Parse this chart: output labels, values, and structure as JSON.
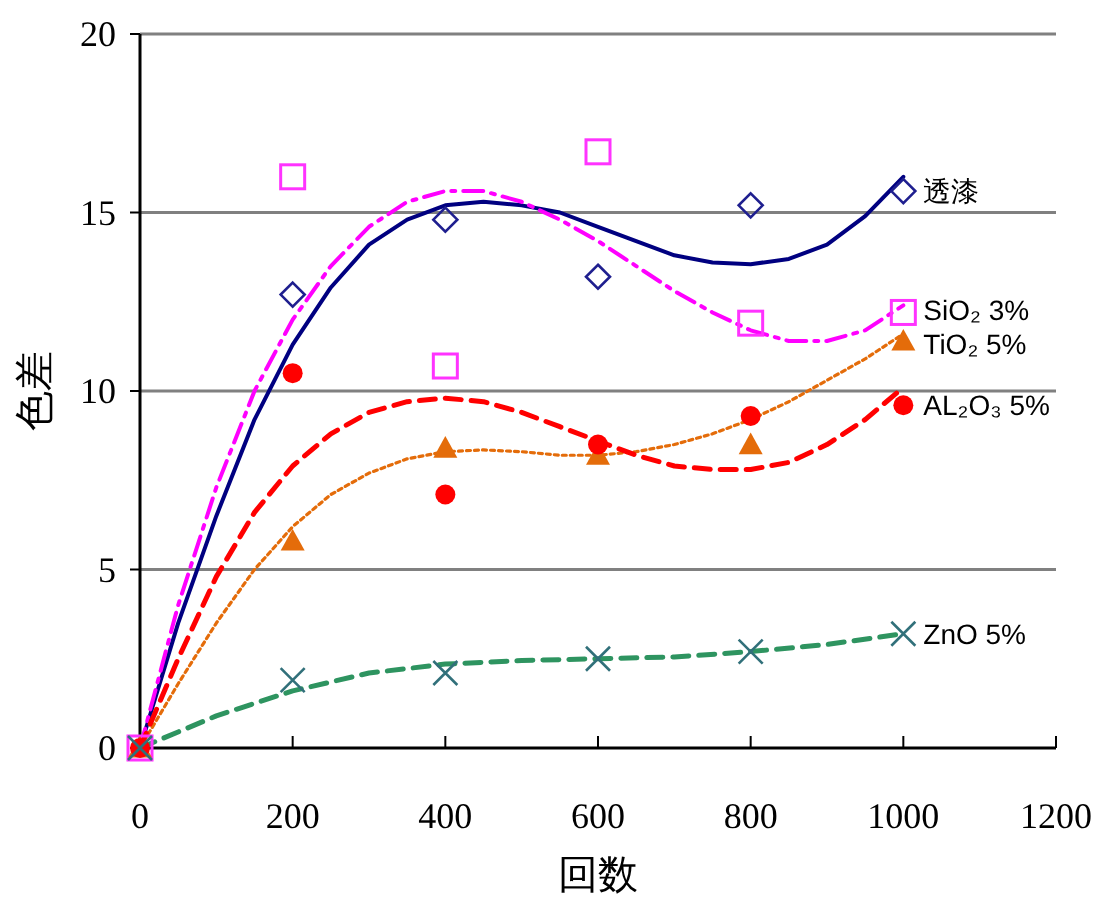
{
  "chart_data": {
    "type": "scatter",
    "xlabel": "回数",
    "ylabel": "色差",
    "xlim": [
      0,
      1200
    ],
    "xticks": [
      0,
      200,
      400,
      600,
      800,
      1000,
      1200
    ],
    "ylim": [
      0,
      20
    ],
    "yticks": [
      0,
      5,
      10,
      15,
      20
    ],
    "grid": "y",
    "series": [
      {
        "name": "透漆",
        "marker": "diamond",
        "color": "#1f1f8f",
        "x": [
          200,
          400,
          600,
          800,
          1000
        ],
        "values": [
          12.7,
          14.8,
          13.2,
          15.2,
          15.6
        ]
      },
      {
        "name": "SiO₂ 3%",
        "marker": "square",
        "color": "#ff33ff",
        "x": [
          0,
          200,
          400,
          600,
          800,
          1000
        ],
        "values": [
          0,
          16,
          10.7,
          16.7,
          11.9,
          12.2
        ]
      },
      {
        "name": "TiO₂ 5%",
        "marker": "triangle",
        "color": "#e46c0a",
        "x": [
          0,
          200,
          400,
          600,
          800,
          1000
        ],
        "values": [
          0,
          5.8,
          8.4,
          8.2,
          8.5,
          11.4
        ]
      },
      {
        "name": "AL₂O₃ 5%",
        "marker": "circle",
        "color": "#ff0000",
        "x": [
          0,
          200,
          400,
          600,
          800,
          1000
        ],
        "values": [
          0,
          10.5,
          7.1,
          8.5,
          9.3,
          9.6
        ]
      },
      {
        "name": "ZnO 5%",
        "marker": "cross",
        "color": "#31707a",
        "x": [
          0,
          200,
          400,
          600,
          800,
          1000
        ],
        "values": [
          0,
          1.9,
          2.1,
          2.5,
          2.7,
          3.2
        ]
      },
      {
        "type": "line",
        "line_style": "solid",
        "color": "#000080",
        "x": [
          0,
          50,
          100,
          150,
          200,
          250,
          300,
          350,
          400,
          450,
          500,
          550,
          600,
          650,
          700,
          750,
          800,
          850,
          900,
          950,
          1000
        ],
        "values": [
          0,
          3.5,
          6.5,
          9.2,
          11.3,
          12.9,
          14.1,
          14.8,
          15.2,
          15.3,
          15.2,
          15.0,
          14.6,
          14.2,
          13.8,
          13.6,
          13.55,
          13.7,
          14.1,
          14.9,
          16.0
        ]
      },
      {
        "type": "line",
        "line_style": "dashdot",
        "color": "#ff00ff",
        "x": [
          0,
          50,
          100,
          150,
          200,
          250,
          300,
          350,
          400,
          450,
          500,
          550,
          600,
          650,
          700,
          750,
          800,
          850,
          900,
          950,
          1000
        ],
        "values": [
          0,
          4,
          7.3,
          10,
          12,
          13.5,
          14.6,
          15.3,
          15.6,
          15.6,
          15.3,
          14.8,
          14.2,
          13.5,
          12.8,
          12.2,
          11.7,
          11.4,
          11.4,
          11.7,
          12.4
        ]
      },
      {
        "type": "line",
        "line_style": "dotted",
        "color": "#e46c0a",
        "x": [
          0,
          50,
          100,
          150,
          200,
          250,
          300,
          350,
          400,
          450,
          500,
          550,
          600,
          650,
          700,
          750,
          800,
          850,
          900,
          950,
          1000
        ],
        "values": [
          0,
          1.8,
          3.5,
          5.0,
          6.2,
          7.1,
          7.7,
          8.1,
          8.3,
          8.35,
          8.3,
          8.2,
          8.2,
          8.3,
          8.5,
          8.8,
          9.2,
          9.7,
          10.3,
          10.9,
          11.6
        ]
      },
      {
        "type": "line",
        "line_style": "dashed",
        "color": "#ff0000",
        "x": [
          0,
          50,
          100,
          150,
          200,
          250,
          300,
          350,
          400,
          450,
          500,
          550,
          600,
          650,
          700,
          750,
          800,
          850,
          900,
          950,
          1000
        ],
        "values": [
          0,
          2.5,
          4.8,
          6.6,
          7.9,
          8.8,
          9.4,
          9.7,
          9.8,
          9.7,
          9.4,
          9.0,
          8.6,
          8.2,
          7.9,
          7.8,
          7.8,
          8.0,
          8.5,
          9.2,
          10.1
        ]
      },
      {
        "type": "line",
        "line_style": "dashed",
        "color": "#2e9460",
        "x": [
          0,
          100,
          200,
          300,
          400,
          500,
          600,
          700,
          800,
          900,
          1000
        ],
        "values": [
          0,
          0.9,
          1.6,
          2.1,
          2.35,
          2.45,
          2.5,
          2.55,
          2.7,
          2.9,
          3.2
        ]
      }
    ]
  }
}
